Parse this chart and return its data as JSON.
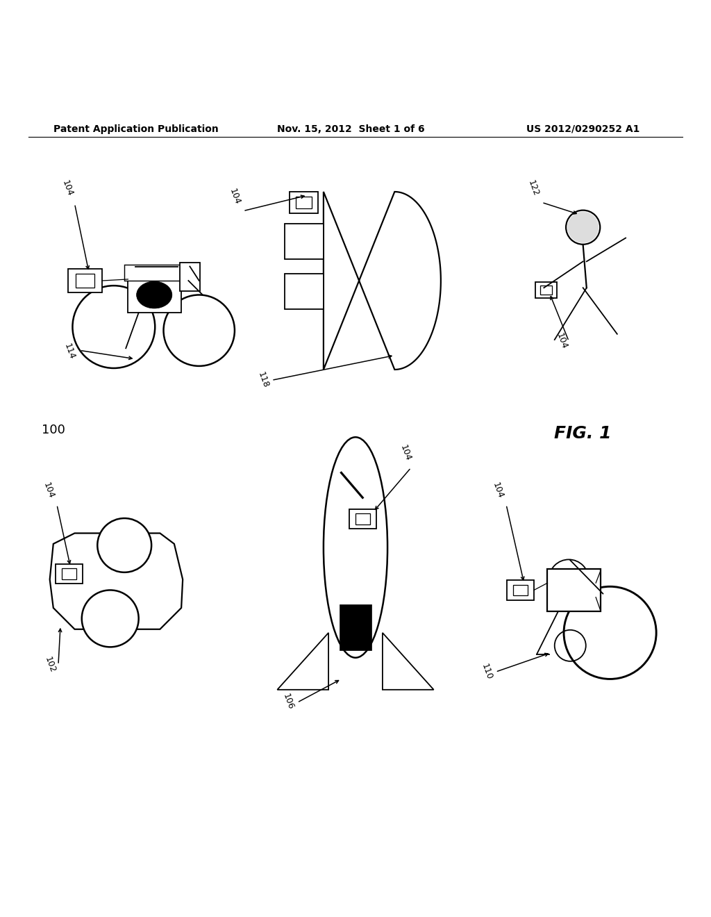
{
  "header_left": "Patent Application Publication",
  "header_mid": "Nov. 15, 2012  Sheet 1 of 6",
  "header_right": "US 2012/0290252 A1",
  "fig_label": "FIG. 1",
  "background_color": "#ffffff",
  "line_color": "#000000",
  "header_fontsize": 10,
  "fig_label_fontsize": 18,
  "label_fontsize": 9
}
